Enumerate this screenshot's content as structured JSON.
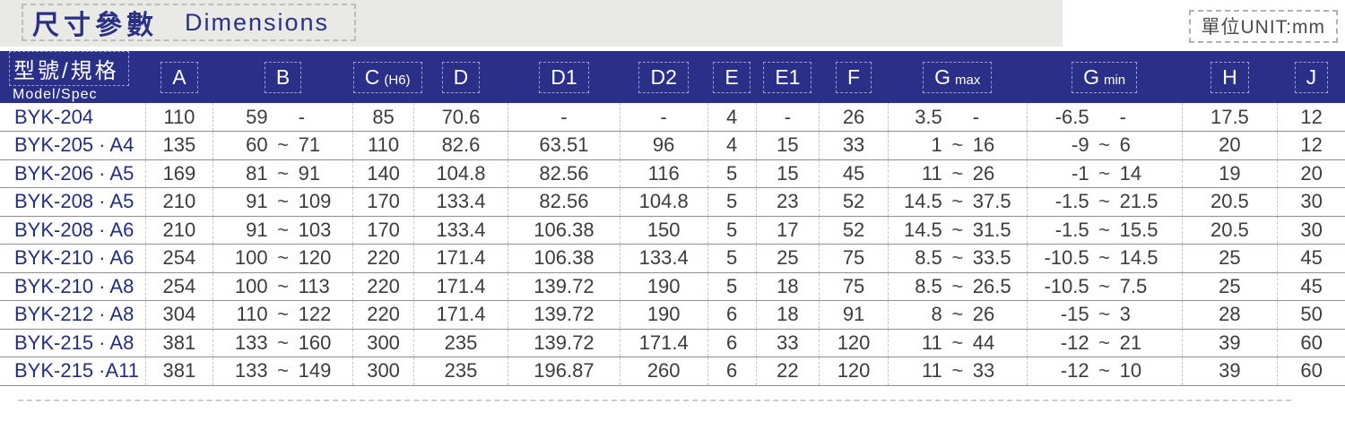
{
  "title": {
    "zh": "尺寸參數",
    "en": "Dimensions"
  },
  "unit_label": "單位UNIT:mm",
  "colors": {
    "header_navy": "#2a2f87",
    "title_navy": "#2a3086",
    "model_text": "#232e80",
    "value_text": "#3c3c3c",
    "title_strip_bg": "#e9e9e6"
  },
  "table": {
    "headers": [
      {
        "zh": "型號/規格",
        "en": "Model/Spec"
      },
      {
        "label": "A"
      },
      {
        "label": "B"
      },
      {
        "label": "C",
        "suffix": "(H6)"
      },
      {
        "label": "D"
      },
      {
        "label": "D1"
      },
      {
        "label": "D2"
      },
      {
        "label": "E"
      },
      {
        "label": "E1"
      },
      {
        "label": "F"
      },
      {
        "label": "G",
        "suffix": "max"
      },
      {
        "label": "G",
        "suffix": "min"
      },
      {
        "label": "H"
      },
      {
        "label": "J"
      }
    ],
    "rows": [
      {
        "model": "BYK-204",
        "values": [
          "110",
          [
            "59",
            "",
            "-"
          ],
          "85",
          "70.6",
          "-",
          "-",
          "4",
          "-",
          "26",
          [
            "3.5",
            "",
            "-"
          ],
          [
            "-6.5",
            "",
            "-"
          ],
          "17.5",
          "12"
        ]
      },
      {
        "model": "BYK-205 · A4",
        "values": [
          "135",
          [
            "60",
            "~",
            "71"
          ],
          "110",
          "82.6",
          "63.51",
          "96",
          "4",
          "15",
          "33",
          [
            "1",
            "~",
            "16"
          ],
          [
            "-9",
            "~",
            "6"
          ],
          "20",
          "12"
        ]
      },
      {
        "model": "BYK-206 · A5",
        "values": [
          "169",
          [
            "81",
            "~",
            "91"
          ],
          "140",
          "104.8",
          "82.56",
          "116",
          "5",
          "15",
          "45",
          [
            "11",
            "~",
            "26"
          ],
          [
            "-1",
            "~",
            "14"
          ],
          "19",
          "20"
        ]
      },
      {
        "model": "BYK-208 · A5",
        "values": [
          "210",
          [
            "91",
            "~",
            "109"
          ],
          "170",
          "133.4",
          "82.56",
          "104.8",
          "5",
          "23",
          "52",
          [
            "14.5",
            "~",
            "37.5"
          ],
          [
            "-1.5",
            "~",
            "21.5"
          ],
          "20.5",
          "30"
        ]
      },
      {
        "model": "BYK-208 · A6",
        "values": [
          "210",
          [
            "91",
            "~",
            "103"
          ],
          "170",
          "133.4",
          "106.38",
          "150",
          "5",
          "17",
          "52",
          [
            "14.5",
            "~",
            "31.5"
          ],
          [
            "-1.5",
            "~",
            "15.5"
          ],
          "20.5",
          "30"
        ]
      },
      {
        "model": "BYK-210 · A6",
        "values": [
          "254",
          [
            "100",
            "~",
            "120"
          ],
          "220",
          "171.4",
          "106.38",
          "133.4",
          "5",
          "25",
          "75",
          [
            "8.5",
            "~",
            "33.5"
          ],
          [
            "-10.5",
            "~",
            "14.5"
          ],
          "25",
          "45"
        ]
      },
      {
        "model": "BYK-210 · A8",
        "values": [
          "254",
          [
            "100",
            "~",
            "113"
          ],
          "220",
          "171.4",
          "139.72",
          "190",
          "5",
          "18",
          "75",
          [
            "8.5",
            "~",
            "26.5"
          ],
          [
            "-10.5",
            "~",
            "7.5"
          ],
          "25",
          "45"
        ]
      },
      {
        "model": "BYK-212 · A8",
        "values": [
          "304",
          [
            "110",
            "~",
            "122"
          ],
          "220",
          "171.4",
          "139.72",
          "190",
          "6",
          "18",
          "91",
          [
            "8",
            "~",
            "26"
          ],
          [
            "-15",
            "~",
            "3"
          ],
          "28",
          "50"
        ]
      },
      {
        "model": "BYK-215 · A8",
        "values": [
          "381",
          [
            "133",
            "~",
            "160"
          ],
          "300",
          "235",
          "139.72",
          "171.4",
          "6",
          "33",
          "120",
          [
            "11",
            "~",
            "44"
          ],
          [
            "-12",
            "~",
            "21"
          ],
          "39",
          "60"
        ]
      },
      {
        "model": "BYK-215 ·A11",
        "values": [
          "381",
          [
            "133",
            "~",
            "149"
          ],
          "300",
          "235",
          "196.87",
          "260",
          "6",
          "22",
          "120",
          [
            "11",
            "~",
            "33"
          ],
          [
            "-12",
            "~",
            "10"
          ],
          "39",
          "60"
        ]
      }
    ]
  }
}
